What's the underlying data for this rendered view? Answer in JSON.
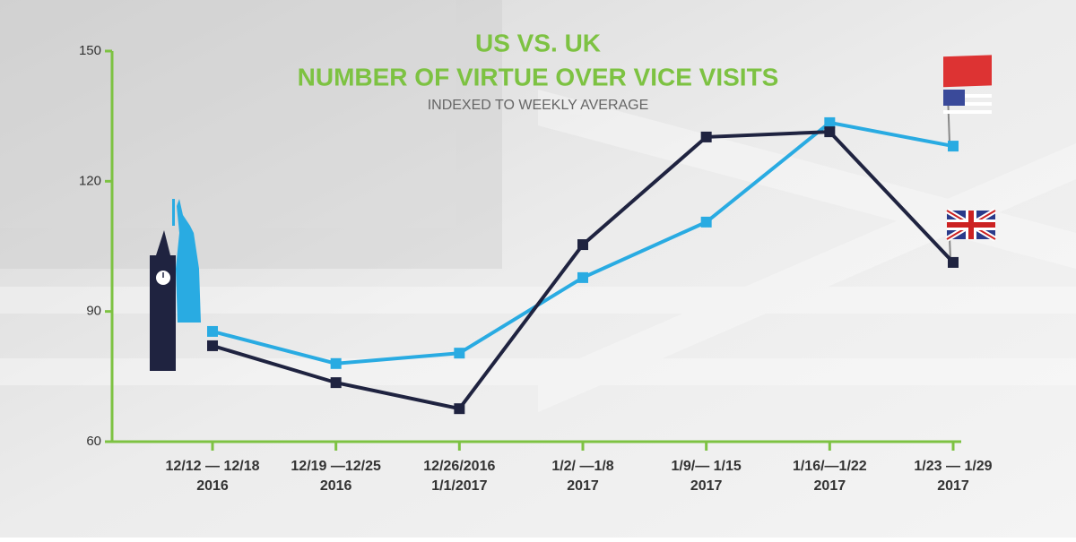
{
  "chart_data": {
    "type": "line",
    "title": "US VS. UK",
    "subtitle": "NUMBER OF VIRTUE OVER VICE VISITS",
    "note": "INDEXED TO WEEKLY AVERAGE",
    "categories": [
      [
        "12/12 — 12/18",
        "2016"
      ],
      [
        "12/19 —12/25",
        "2016"
      ],
      [
        "12/26/2016",
        "1/1/2017"
      ],
      [
        "1/2/ —1/8",
        "2017"
      ],
      [
        "1/9/— 1/15",
        "2017"
      ],
      [
        "1/16/—1/22",
        "2017"
      ],
      [
        "1/23 — 1/29",
        "2017"
      ]
    ],
    "series": [
      {
        "color": "#29abe2",
        "values": [
          85.4,
          78,
          80.4,
          97.8,
          110.6,
          133.5,
          128.1
        ]
      },
      {
        "color": "#1f2340",
        "values": [
          82.1,
          73.6,
          67.6,
          105.4,
          130.2,
          131.4,
          101.3
        ]
      }
    ],
    "ylim": [
      60,
      150
    ],
    "yticks": [
      60,
      90,
      120,
      150
    ],
    "axis_color": "#7dc242"
  }
}
